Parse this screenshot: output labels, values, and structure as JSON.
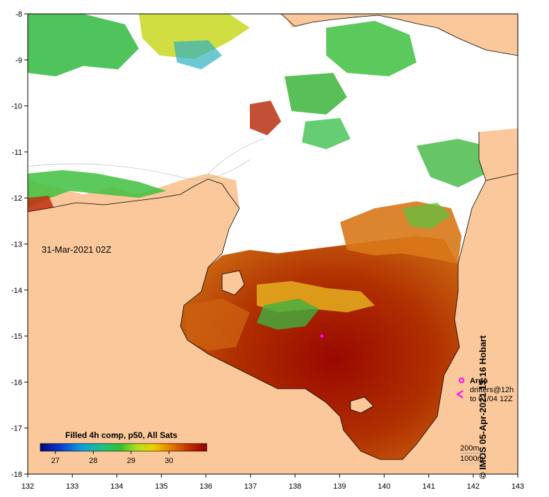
{
  "map": {
    "date_label": "31-Mar-2021 02Z",
    "credit": "© IMOS 05-Apr-2021 13:16 Hobart",
    "x_ticks": [
      "132",
      "133",
      "134",
      "135",
      "136",
      "137",
      "138",
      "139",
      "140",
      "141",
      "142",
      "143"
    ],
    "y_ticks": [
      "-8",
      "-9",
      "-10",
      "-11",
      "-12",
      "-13",
      "-14",
      "-15",
      "-16",
      "-17",
      "-18"
    ],
    "lon_range": [
      132,
      143
    ],
    "lat_range": [
      -18,
      -8
    ],
    "colorbar": {
      "title": "Filled 4h comp, p50, All Sats",
      "ticks": [
        "27",
        "28",
        "29",
        "30"
      ],
      "range": [
        26.6,
        31.0
      ],
      "colors": [
        "#08087a",
        "#0a3ad0",
        "#10a0e0",
        "#20c080",
        "#30c030",
        "#b0e020",
        "#f0d000",
        "#e07000",
        "#c02800",
        "#900000"
      ]
    },
    "legend": {
      "argo_label": "Argo",
      "drifters_label": "drifters@12h",
      "drifters_to": "to 01/04 12Z",
      "depth_200": "200m",
      "depth_1000": "1000m"
    },
    "argo_float": {
      "lon": 138.6,
      "lat": -15.0
    },
    "colors": {
      "land": "#fac89a",
      "no_data": "#ffffff",
      "argo": "#ff00ff"
    }
  }
}
